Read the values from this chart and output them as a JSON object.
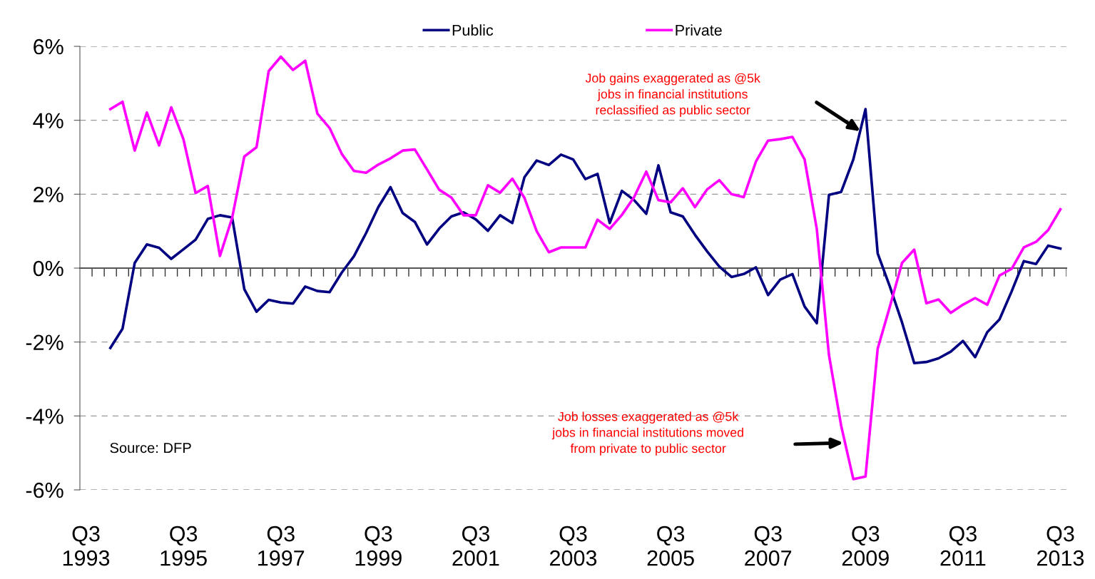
{
  "chart_data": {
    "type": "line",
    "categories": [
      "Q3\n1993",
      null,
      null,
      null,
      null,
      null,
      null,
      null,
      "Q3\n1995",
      null,
      null,
      null,
      null,
      null,
      null,
      null,
      "Q3\n1997",
      null,
      null,
      null,
      null,
      null,
      null,
      null,
      "Q3\n1999",
      null,
      null,
      null,
      null,
      null,
      null,
      null,
      "Q3\n2001",
      null,
      null,
      null,
      null,
      null,
      null,
      null,
      "Q3\n2003",
      null,
      null,
      null,
      null,
      null,
      null,
      null,
      "Q3\n2005",
      null,
      null,
      null,
      null,
      null,
      null,
      null,
      "Q3\n2007",
      null,
      null,
      null,
      null,
      null,
      null,
      null,
      "Q3\n2009",
      null,
      null,
      null,
      null,
      null,
      null,
      null,
      "Q3\n2011",
      null,
      null,
      null,
      null,
      null,
      null,
      null,
      "Q3\n2013"
    ],
    "series": [
      {
        "name": "Public",
        "color": "#000080",
        "values": [
          null,
          null,
          -2.16,
          -1.64,
          0.14,
          0.64,
          0.55,
          0.25,
          0.51,
          0.77,
          1.33,
          1.43,
          1.37,
          -0.57,
          -1.18,
          -0.86,
          -0.93,
          -0.96,
          -0.5,
          -0.62,
          -0.65,
          -0.12,
          0.32,
          0.95,
          1.65,
          2.19,
          1.49,
          1.25,
          0.64,
          1.07,
          1.4,
          1.51,
          1.32,
          1.01,
          1.43,
          1.22,
          2.46,
          2.91,
          2.79,
          3.07,
          2.94,
          2.41,
          2.55,
          1.22,
          2.09,
          1.84,
          1.47,
          2.78,
          1.51,
          1.4,
          0.9,
          0.45,
          0.04,
          -0.24,
          -0.16,
          0.02,
          -0.73,
          -0.31,
          -0.16,
          -1.04,
          -1.49,
          1.98,
          2.06,
          2.94,
          4.3,
          0.4,
          -0.5,
          -1.47,
          -2.57,
          -2.54,
          -2.44,
          -2.26,
          -1.97,
          -2.41,
          -1.73,
          -1.39,
          -0.63,
          0.19,
          0.11,
          0.61,
          0.53
        ]
      },
      {
        "name": "Private",
        "color": "#ff00ff",
        "values": [
          null,
          null,
          4.3,
          4.5,
          3.18,
          4.21,
          3.32,
          4.35,
          3.49,
          2.03,
          2.22,
          0.33,
          1.36,
          3.02,
          3.27,
          5.33,
          5.72,
          5.36,
          5.61,
          4.18,
          3.79,
          3.09,
          2.63,
          2.58,
          2.8,
          2.97,
          3.18,
          3.21,
          2.67,
          2.12,
          1.91,
          1.43,
          1.43,
          2.24,
          2.04,
          2.42,
          1.9,
          1.0,
          0.43,
          0.56,
          0.56,
          0.56,
          1.31,
          1.06,
          1.44,
          1.92,
          2.61,
          1.84,
          1.78,
          2.16,
          1.65,
          2.13,
          2.38,
          2.0,
          1.92,
          2.88,
          3.45,
          3.49,
          3.55,
          2.94,
          1.06,
          -2.35,
          -4.26,
          -5.71,
          -5.64,
          -2.18,
          -1.04,
          0.14,
          0.5,
          -0.95,
          -0.85,
          -1.21,
          -0.99,
          -0.81,
          -0.99,
          -0.2,
          -0.02,
          0.56,
          0.71,
          1.03,
          1.59
        ]
      }
    ],
    "ylim": [
      -6,
      6
    ],
    "yticks": [
      {
        "value": -6,
        "label": "-6%"
      },
      {
        "value": -4,
        "label": "-4%"
      },
      {
        "value": -2,
        "label": "-2%"
      },
      {
        "value": 0,
        "label": "0%"
      },
      {
        "value": 2,
        "label": "2%"
      },
      {
        "value": 4,
        "label": "4%"
      },
      {
        "value": 6,
        "label": "6%"
      }
    ],
    "grid": "y",
    "legend": "top",
    "line_style": "solid",
    "marker": "none",
    "annotations": [
      "Job gains exaggerated as @5k\njobs in financial institutions\nreclassified as public sector",
      "Job losses exaggerated as @5k\njobs in financial institutions moved\nfrom private to public sector",
      "Source: DFP"
    ]
  }
}
